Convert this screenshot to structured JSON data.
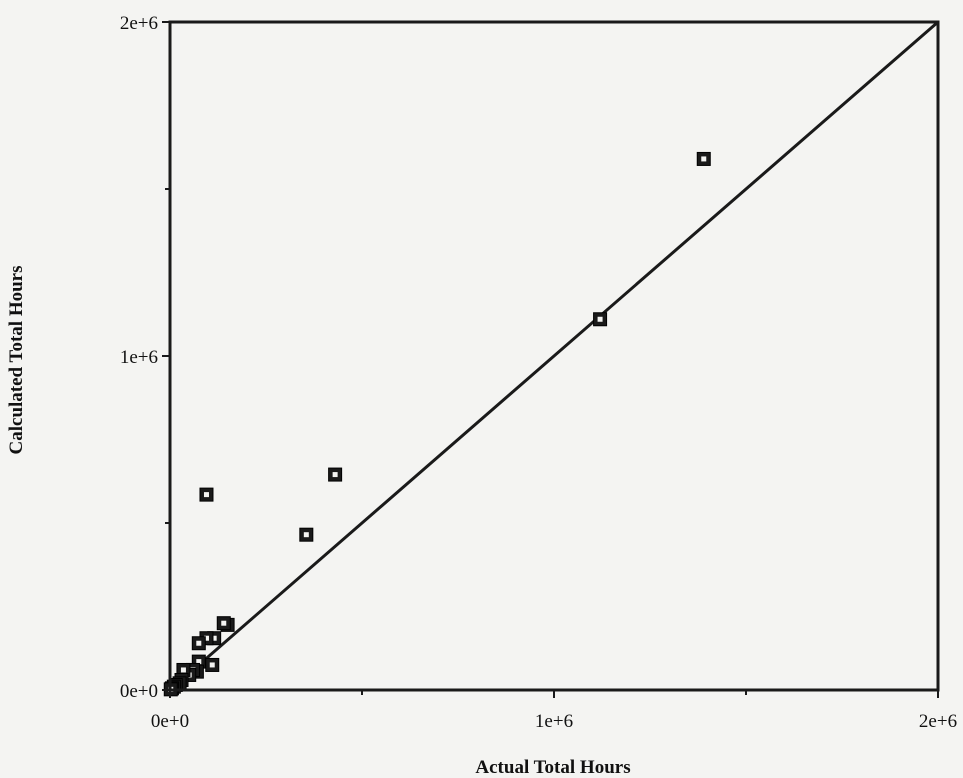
{
  "chart_data": {
    "type": "scatter",
    "xlabel": "Actual Total Hours",
    "ylabel": "Calculated Total Hours",
    "xlim": [
      0,
      2000000
    ],
    "ylim": [
      0,
      2000000
    ],
    "x_major_ticks": [
      {
        "value": 0,
        "label": "0e+0"
      },
      {
        "value": 1000000,
        "label": "1e+6"
      },
      {
        "value": 2000000,
        "label": "2e+6"
      }
    ],
    "y_major_ticks": [
      {
        "value": 0,
        "label": "0e+0"
      },
      {
        "value": 1000000,
        "label": "1e+6"
      },
      {
        "value": 2000000,
        "label": "2e+6"
      }
    ],
    "minor_tick_step": 500000,
    "grid": false,
    "reference_line": {
      "type": "identity",
      "from": [
        0,
        0
      ],
      "to": [
        2000000,
        2000000
      ]
    },
    "points": [
      {
        "x": 1390000,
        "y": 1590000
      },
      {
        "x": 1120000,
        "y": 1110000
      },
      {
        "x": 430000,
        "y": 645000
      },
      {
        "x": 355000,
        "y": 465000
      },
      {
        "x": 95000,
        "y": 585000
      },
      {
        "x": 150000,
        "y": 195000
      },
      {
        "x": 140000,
        "y": 200000
      },
      {
        "x": 115000,
        "y": 155000
      },
      {
        "x": 95000,
        "y": 155000
      },
      {
        "x": 75000,
        "y": 140000
      },
      {
        "x": 110000,
        "y": 75000
      },
      {
        "x": 75000,
        "y": 85000
      },
      {
        "x": 70000,
        "y": 55000
      },
      {
        "x": 60000,
        "y": 60000
      },
      {
        "x": 50000,
        "y": 45000
      },
      {
        "x": 35000,
        "y": 60000
      },
      {
        "x": 30000,
        "y": 30000
      },
      {
        "x": 25000,
        "y": 20000
      },
      {
        "x": 15000,
        "y": 15000
      },
      {
        "x": 10000,
        "y": 10000
      },
      {
        "x": 5000,
        "y": 5000
      },
      {
        "x": 2000,
        "y": 2000
      }
    ],
    "marker_color": "#1a1a1a",
    "line_color": "#1a1a1a"
  }
}
